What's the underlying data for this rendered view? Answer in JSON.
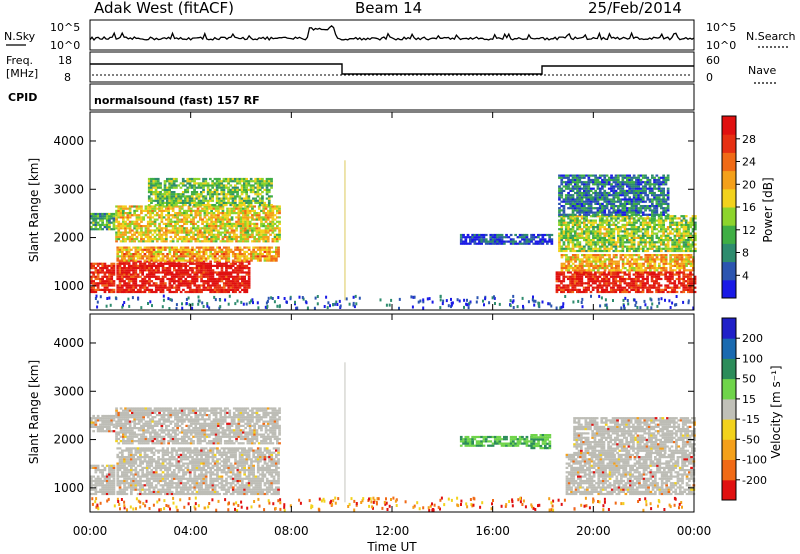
{
  "header": {
    "station": "Adak West (fitACF)",
    "beam": "Beam 14",
    "date": "25/Feb/2014"
  },
  "noise_panel": {
    "left_label": "N.Sky",
    "right_label": "N.Search",
    "tick_top": "10^5",
    "tick_bottom": "10^0"
  },
  "freq_panel": {
    "left_label_line1": "Freq.",
    "left_label_line2": "[MHz]",
    "left_ticks": [
      "18",
      "8"
    ],
    "right_label": "Nave",
    "right_ticks": [
      "60",
      "0"
    ]
  },
  "cpid_panel": {
    "label": "CPID",
    "text": "normalsound (fast) 157 RF"
  },
  "chart_data": [
    {
      "type": "heatmap",
      "name": "power",
      "ylabel": "Slant Range [km]",
      "yticks": [
        "1000",
        "2000",
        "3000",
        "4000"
      ],
      "ylim": [
        500,
        4600
      ],
      "xlim": [
        0,
        24
      ],
      "colorbar": {
        "label": "Power [dB]",
        "ticks": [
          "4",
          "8",
          "12",
          "16",
          "20",
          "24",
          "28"
        ],
        "colors": [
          "#1a1ae6",
          "#2c55b0",
          "#2e8c6e",
          "#3fae44",
          "#8dd42c",
          "#f2d21c",
          "#f4a01a",
          "#f06a16",
          "#e63012",
          "#e01010"
        ]
      },
      "regions": [
        {
          "t0": 0.0,
          "t1": 0.95,
          "r0": 850,
          "r1": 1450,
          "level": 0.9
        },
        {
          "t0": 0.0,
          "t1": 0.95,
          "r0": 2150,
          "r1": 2500,
          "level": 0.35
        },
        {
          "t0": 1.05,
          "t1": 6.3,
          "r0": 850,
          "r1": 1500,
          "level": 0.95
        },
        {
          "t0": 1.05,
          "t1": 7.5,
          "r0": 1500,
          "r1": 1800,
          "level": 0.65
        },
        {
          "t0": 1.0,
          "t1": 7.5,
          "r0": 1900,
          "r1": 2650,
          "level": 0.55
        },
        {
          "t0": 2.3,
          "t1": 7.2,
          "r0": 2650,
          "r1": 3200,
          "level": 0.4
        },
        {
          "t0": 14.7,
          "t1": 18.3,
          "r0": 1850,
          "r1": 2050,
          "level": 0.12
        },
        {
          "t0": 18.5,
          "t1": 24.0,
          "r0": 850,
          "r1": 1300,
          "level": 0.92
        },
        {
          "t0": 18.7,
          "t1": 24.0,
          "r0": 1300,
          "r1": 1650,
          "level": 0.62
        },
        {
          "t0": 18.6,
          "t1": 24.0,
          "r0": 1700,
          "r1": 2450,
          "level": 0.45
        },
        {
          "t0": 18.6,
          "t1": 23.0,
          "r0": 2450,
          "r1": 3300,
          "level": 0.22
        }
      ]
    },
    {
      "type": "heatmap",
      "name": "velocity",
      "xlabel": "Time UT",
      "xticks": [
        "00:00",
        "04:00",
        "08:00",
        "12:00",
        "16:00",
        "20:00",
        "00:00"
      ],
      "ylabel": "Slant Range [km]",
      "yticks": [
        "1000",
        "2000",
        "3000",
        "4000"
      ],
      "ylim": [
        500,
        4600
      ],
      "xlim": [
        0,
        24
      ],
      "colorbar": {
        "label": "Velocity [m s⁻¹]",
        "ticks": [
          "-200",
          "-100",
          "-50",
          "-15",
          "15",
          "50",
          "100",
          "200"
        ],
        "colors": [
          "#e01010",
          "#f06a16",
          "#f4a01a",
          "#f2d21c",
          "#c0c0b8",
          "#6fd44a",
          "#2c8c5a",
          "#1a6ab0",
          "#2020c8"
        ]
      },
      "ground_scatter_color": "#bdbdb6",
      "regions": [
        {
          "t0": 0.0,
          "t1": 0.95,
          "r0": 850,
          "r1": 1450,
          "kind": "ground"
        },
        {
          "t0": 0.0,
          "t1": 0.95,
          "r0": 2150,
          "r1": 2500,
          "kind": "ground"
        },
        {
          "t0": 1.05,
          "t1": 7.5,
          "r0": 850,
          "r1": 1800,
          "kind": "ground"
        },
        {
          "t0": 1.0,
          "t1": 7.5,
          "r0": 1900,
          "r1": 2650,
          "kind": "ground"
        },
        {
          "t0": 14.7,
          "t1": 17.5,
          "r0": 1850,
          "r1": 2050,
          "kind": "green"
        },
        {
          "t0": 17.5,
          "t1": 18.3,
          "r0": 1800,
          "r1": 2100,
          "kind": "green"
        },
        {
          "t0": 18.9,
          "t1": 24.0,
          "r0": 850,
          "r1": 1700,
          "kind": "ground"
        },
        {
          "t0": 19.2,
          "t1": 24.0,
          "r0": 1700,
          "r1": 2450,
          "kind": "ground"
        }
      ]
    }
  ]
}
